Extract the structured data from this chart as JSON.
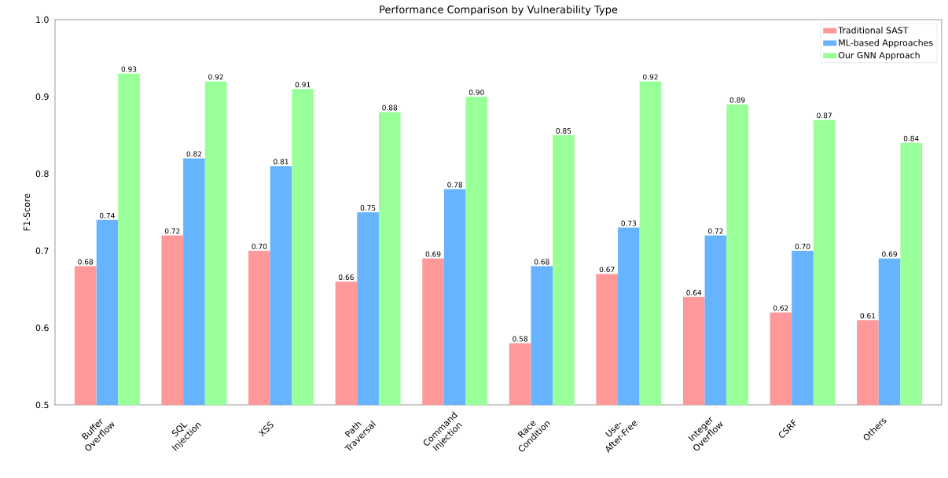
{
  "chart_data": {
    "type": "bar",
    "title": "Performance Comparison by Vulnerability Type",
    "ylabel": "F1-Score",
    "categories": [
      "Buffer Overflow",
      "SQL Injection",
      "XSS",
      "Path Traversal",
      "Command Injection",
      "Race Condition",
      "Use-After-Free",
      "Integer Overflow",
      "CSRF",
      "Others"
    ],
    "series": [
      {
        "name": "Traditional SAST",
        "color": "#ff9999",
        "values": [
          0.68,
          0.72,
          0.7,
          0.66,
          0.69,
          0.58,
          0.67,
          0.64,
          0.62,
          0.61
        ],
        "value_labels": [
          "0.68",
          "0.72",
          "0.70",
          "0.66",
          "0.69",
          "0.58",
          "0.67",
          "0.64",
          "0.62",
          "0.61"
        ]
      },
      {
        "name": "ML-based Approaches",
        "color": "#66b3ff",
        "values": [
          0.74,
          0.82,
          0.81,
          0.75,
          0.78,
          0.68,
          0.73,
          0.72,
          0.7,
          0.69
        ],
        "value_labels": [
          "0.74",
          "0.82",
          "0.81",
          "0.75",
          "0.78",
          "0.68",
          "0.73",
          "0.72",
          "0.70",
          "0.69"
        ]
      },
      {
        "name": "Our GNN Approach",
        "color": "#99ff99",
        "values": [
          0.93,
          0.92,
          0.91,
          0.88,
          0.9,
          0.85,
          0.92,
          0.89,
          0.87,
          0.84
        ],
        "value_labels": [
          "0.93",
          "0.92",
          "0.91",
          "0.88",
          "0.90",
          "0.85",
          "0.92",
          "0.89",
          "0.87",
          "0.84"
        ]
      }
    ],
    "ylim": [
      0.5,
      1.0
    ],
    "yticks": [
      {
        "value": 0.5,
        "label": "0.5"
      },
      {
        "value": 0.6,
        "label": "0.6"
      },
      {
        "value": 0.7,
        "label": "0.7"
      },
      {
        "value": 0.8,
        "label": "0.8"
      },
      {
        "value": 0.9,
        "label": "0.9"
      },
      {
        "value": 1.0,
        "label": "1.0"
      }
    ],
    "legend": "top right"
  }
}
